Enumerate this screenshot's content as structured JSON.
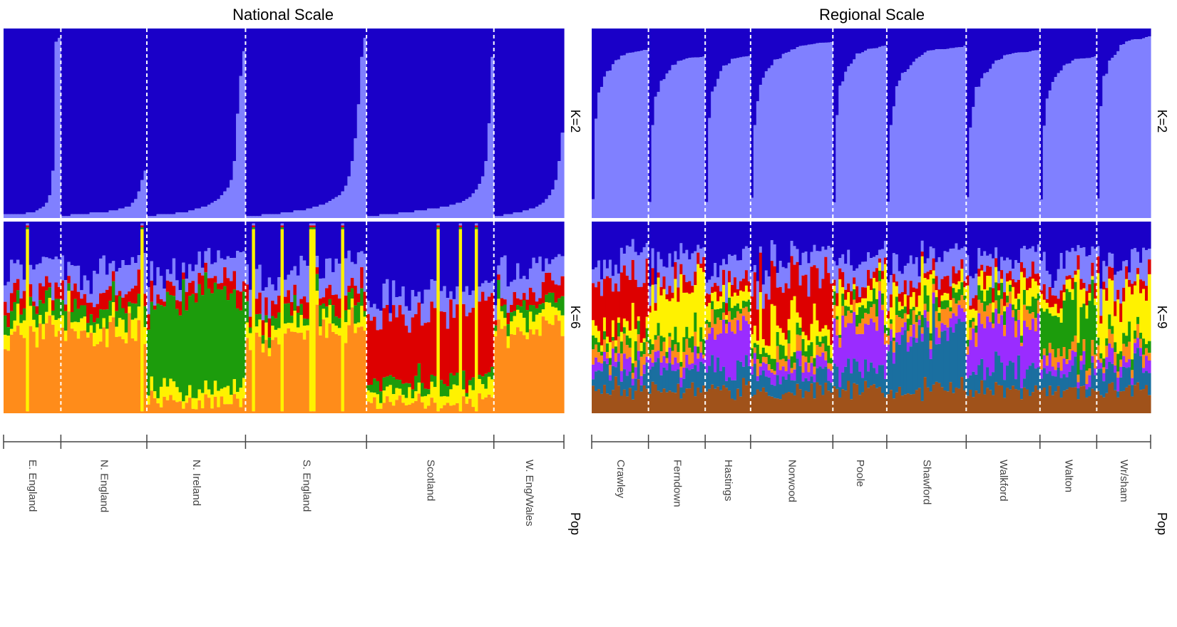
{
  "chart_data": [
    {
      "type": "bar",
      "subtype": "stacked-admixture (STRUCTURE plot)",
      "title": "National Scale",
      "facet_label": "Pop",
      "populations": [
        "E. England",
        "N. England",
        "N. Ireland",
        "S. England",
        "Scotland",
        "W. Eng/Wales"
      ],
      "population_widths_individuals": [
        18,
        27,
        31,
        38,
        40,
        22
      ],
      "panels": [
        {
          "label": "K=2",
          "series": [
            {
              "color": "#1a00c8",
              "description": "cluster 1 (dark blue)"
            },
            {
              "color": "#8080ff",
              "description": "cluster 2 (light blue)"
            }
          ],
          "light_blue_fraction_by_population": [
            [
              0.02,
              0.02,
              0.02,
              0.02,
              0.02,
              0.02,
              0.02,
              0.03,
              0.03,
              0.03,
              0.04,
              0.05,
              0.06,
              0.08,
              0.12,
              0.25,
              0.93,
              0.95
            ],
            [
              0.01,
              0.01,
              0.01,
              0.02,
              0.02,
              0.02,
              0.02,
              0.02,
              0.02,
              0.03,
              0.03,
              0.03,
              0.03,
              0.03,
              0.03,
              0.04,
              0.04,
              0.04,
              0.05,
              0.05,
              0.06,
              0.06,
              0.08,
              0.1,
              0.14,
              0.2,
              0.25
            ],
            [
              0.01,
              0.01,
              0.01,
              0.02,
              0.02,
              0.02,
              0.02,
              0.02,
              0.02,
              0.03,
              0.03,
              0.03,
              0.03,
              0.04,
              0.04,
              0.05,
              0.05,
              0.06,
              0.06,
              0.07,
              0.08,
              0.09,
              0.1,
              0.12,
              0.14,
              0.16,
              0.2,
              0.3,
              0.55,
              0.75,
              0.88
            ],
            [
              0.01,
              0.01,
              0.01,
              0.01,
              0.01,
              0.02,
              0.02,
              0.02,
              0.02,
              0.02,
              0.02,
              0.03,
              0.03,
              0.03,
              0.03,
              0.04,
              0.04,
              0.04,
              0.04,
              0.05,
              0.05,
              0.06,
              0.06,
              0.07,
              0.07,
              0.08,
              0.09,
              0.1,
              0.11,
              0.12,
              0.14,
              0.17,
              0.22,
              0.3,
              0.42,
              0.6,
              0.85,
              0.95
            ],
            [
              0.01,
              0.01,
              0.01,
              0.01,
              0.02,
              0.02,
              0.02,
              0.02,
              0.02,
              0.02,
              0.03,
              0.03,
              0.03,
              0.03,
              0.03,
              0.04,
              0.04,
              0.04,
              0.04,
              0.05,
              0.05,
              0.05,
              0.05,
              0.06,
              0.06,
              0.06,
              0.07,
              0.07,
              0.08,
              0.08,
              0.09,
              0.1,
              0.11,
              0.13,
              0.15,
              0.18,
              0.22,
              0.3,
              0.5,
              0.85
            ],
            [
              0.01,
              0.01,
              0.01,
              0.02,
              0.02,
              0.02,
              0.03,
              0.03,
              0.03,
              0.04,
              0.04,
              0.05,
              0.05,
              0.06,
              0.07,
              0.08,
              0.1,
              0.12,
              0.15,
              0.2,
              0.3,
              0.45
            ]
          ]
        },
        {
          "label": "K=6",
          "series": [
            {
              "color": "#1a00c8"
            },
            {
              "color": "#8080ff"
            },
            {
              "color": "#dd0000"
            },
            {
              "color": "#1c9c0c"
            },
            {
              "color": "#fff200"
            },
            {
              "color": "#ff8c1a"
            }
          ],
          "dominant_cluster_by_population": [
            "orange/red",
            "orange",
            "green",
            "orange/red",
            "dark blue/red",
            "orange"
          ]
        }
      ]
    },
    {
      "type": "bar",
      "subtype": "stacked-admixture (STRUCTURE plot)",
      "title": "Regional Scale",
      "facet_label": "Pop",
      "populations": [
        "Crawley",
        "Ferndown",
        "Hastings",
        "Norwood",
        "Poole",
        "Shawford",
        "Walkford",
        "Walton",
        "Wr/sham"
      ],
      "population_widths_individuals": [
        20,
        20,
        16,
        29,
        19,
        28,
        26,
        20,
        19
      ],
      "panels": [
        {
          "label": "K=2",
          "series": [
            {
              "color": "#1a00c8"
            },
            {
              "color": "#8080ff"
            }
          ],
          "light_blue_fraction_approx_by_population": [
            0.88,
            0.85,
            0.85,
            0.92,
            0.9,
            0.9,
            0.88,
            0.85,
            0.95
          ]
        },
        {
          "label": "K=9",
          "series": [
            {
              "color": "#1a00c8"
            },
            {
              "color": "#8080ff"
            },
            {
              "color": "#dd0000"
            },
            {
              "color": "#1c9c0c"
            },
            {
              "color": "#fff200"
            },
            {
              "color": "#ff8c1a"
            },
            {
              "color": "#9a2cff"
            },
            {
              "color": "#1a6fa0"
            },
            {
              "color": "#a0521a"
            }
          ]
        }
      ]
    }
  ],
  "strip_labels": {
    "k2": "K=2",
    "k6": "K=6",
    "k9": "K=9",
    "pop": "Pop"
  }
}
